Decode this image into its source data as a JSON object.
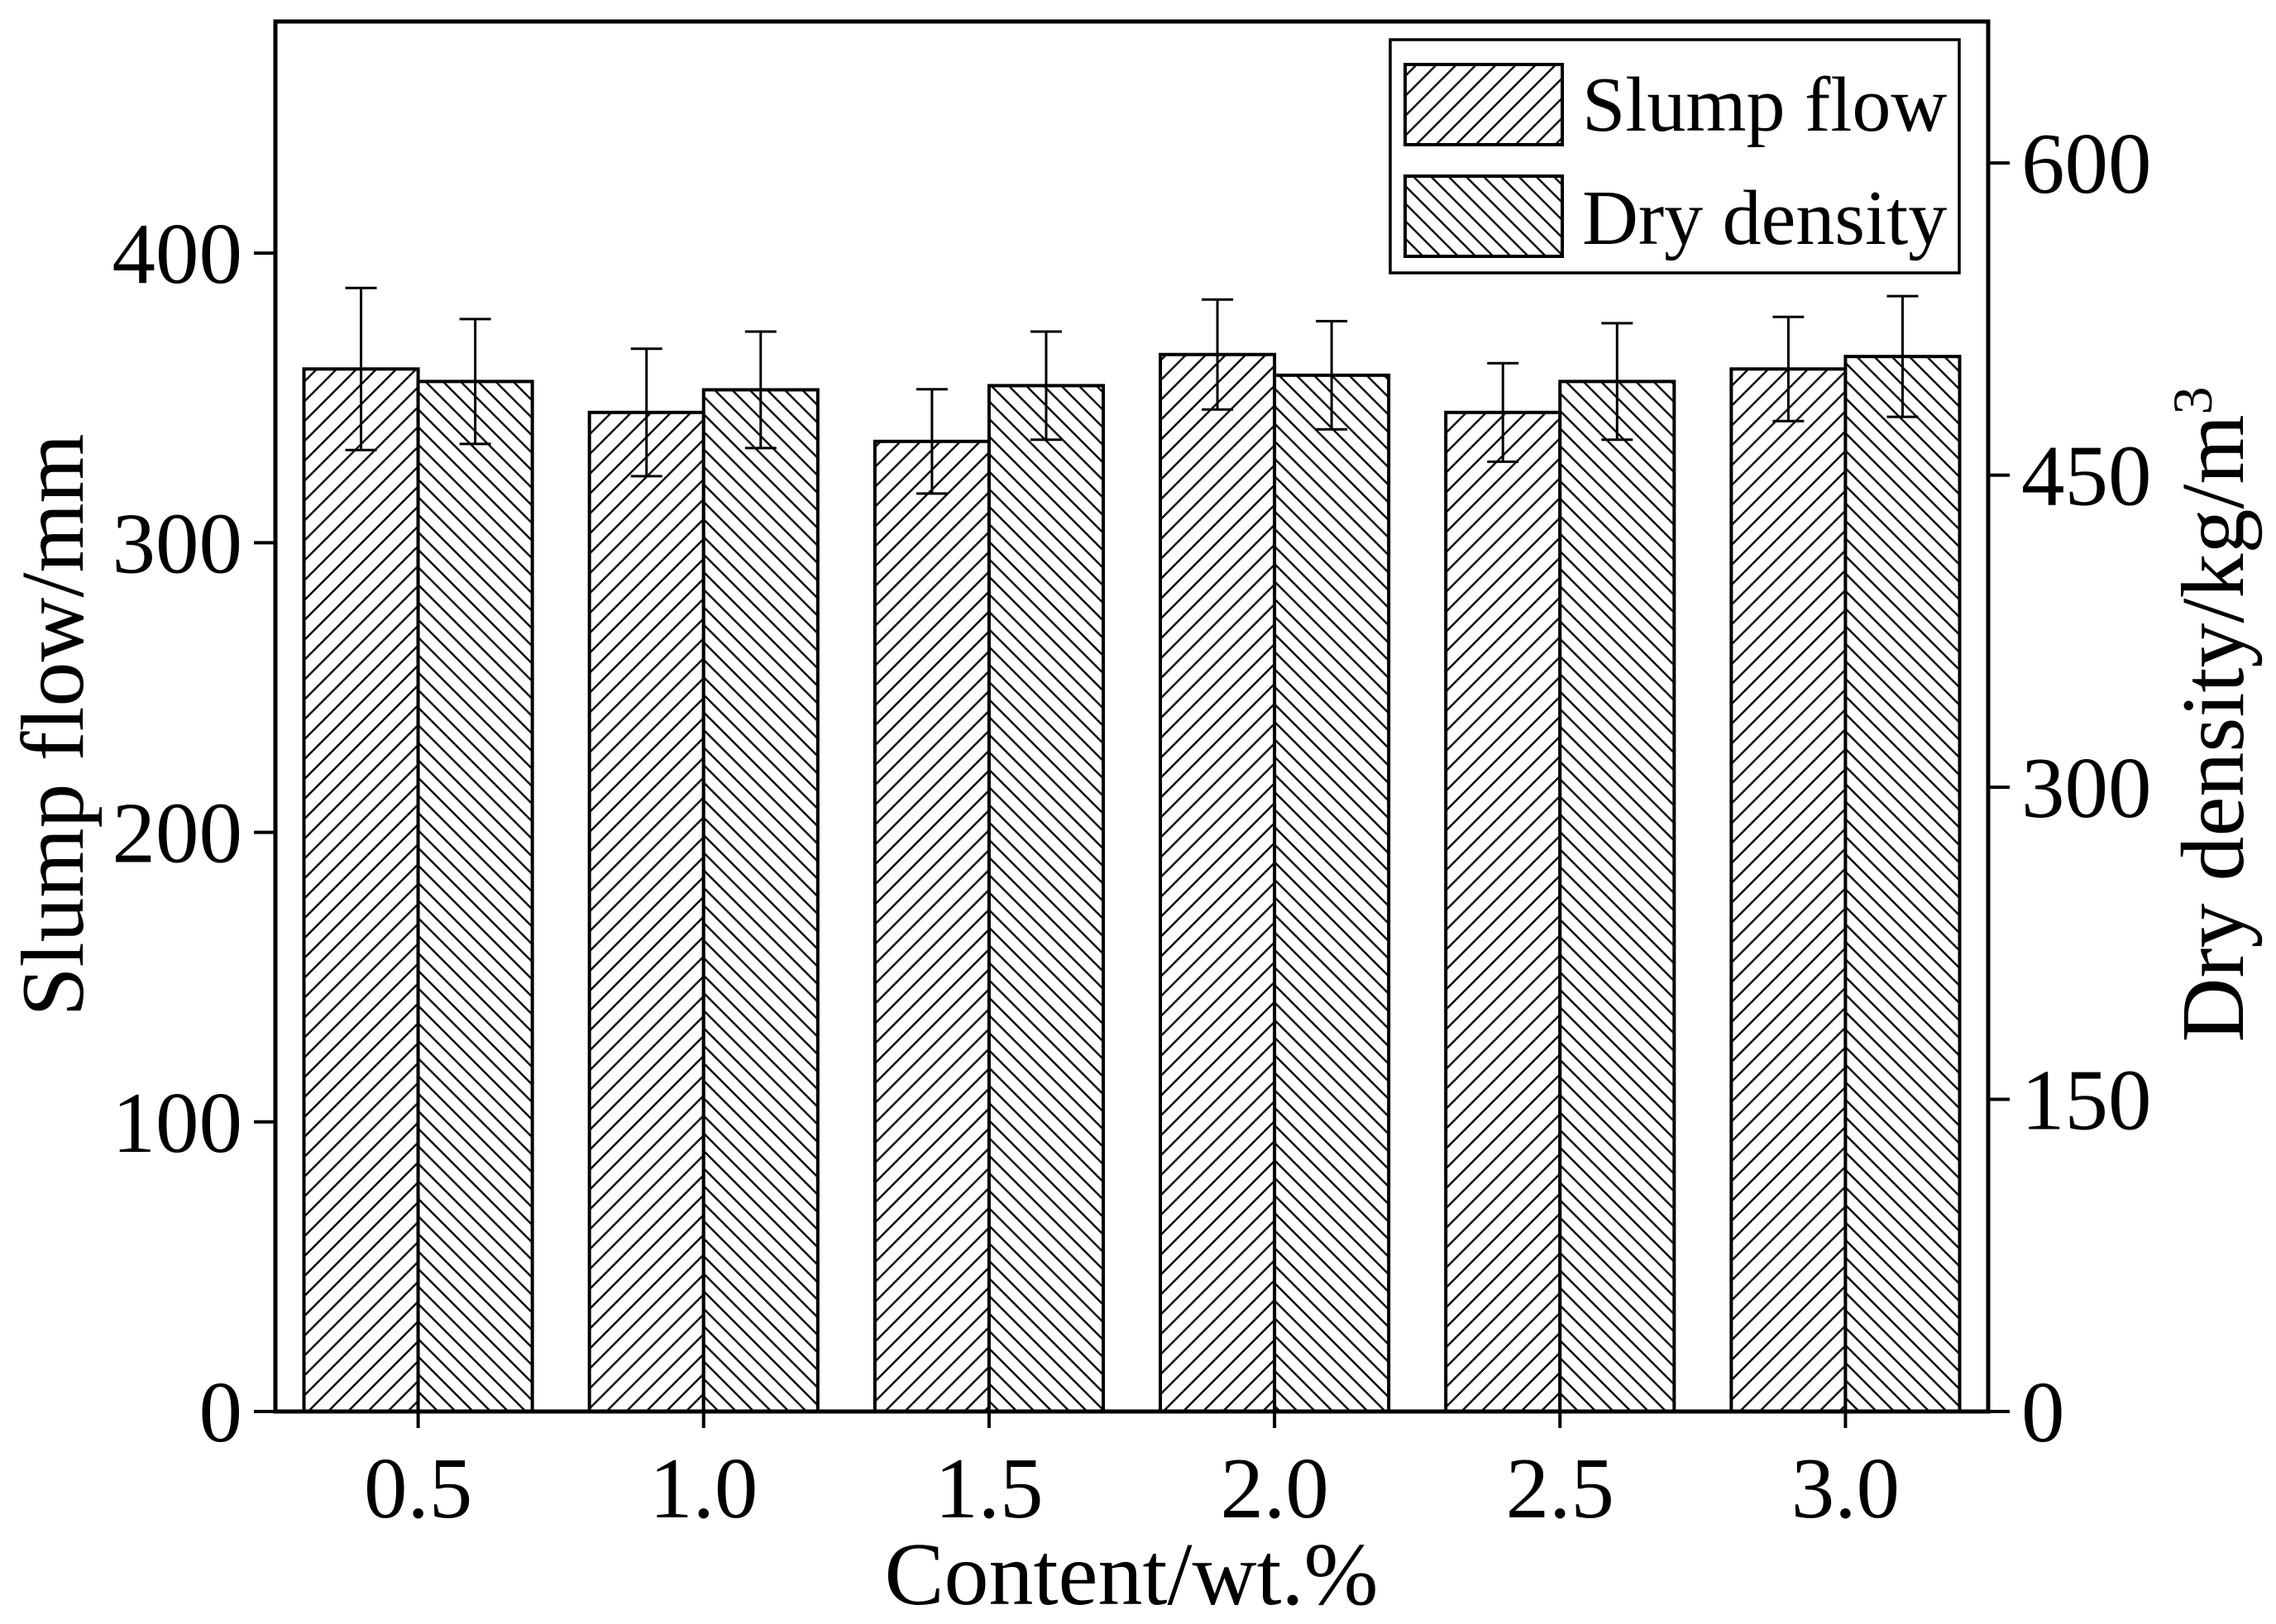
{
  "chart_data": {
    "type": "bar",
    "categories": [
      "0.5",
      "1.0",
      "1.5",
      "2.0",
      "2.5",
      "3.0"
    ],
    "xlabel": "Content/wt.%",
    "ylabel": "Slump flow/mm",
    "y2label": "Dry density/kg/m",
    "y2label_superscript": "3",
    "ylim": [
      0,
      480
    ],
    "y2lim": [
      0,
      668
    ],
    "yticks": [
      "0",
      "100",
      "200",
      "300",
      "400"
    ],
    "y2ticks": [
      "0",
      "150",
      "300",
      "450",
      "600"
    ],
    "grid": false,
    "legend_position": "top-right",
    "colors": {
      "ink": "#000000",
      "background": "#ffffff"
    },
    "series": [
      {
        "name": "Slump flow",
        "axis": "left",
        "hatch": "forward-diagonal",
        "values": [
          360,
          345,
          335,
          365,
          345,
          360
        ],
        "errors": [
          28,
          22,
          18,
          19,
          17,
          18
        ]
      },
      {
        "name": "Dry density",
        "axis": "right",
        "hatch": "backward-diagonal",
        "values": [
          495,
          491,
          493,
          498,
          495,
          507
        ],
        "errors": [
          30,
          28,
          26,
          26,
          28,
          29
        ]
      }
    ]
  }
}
